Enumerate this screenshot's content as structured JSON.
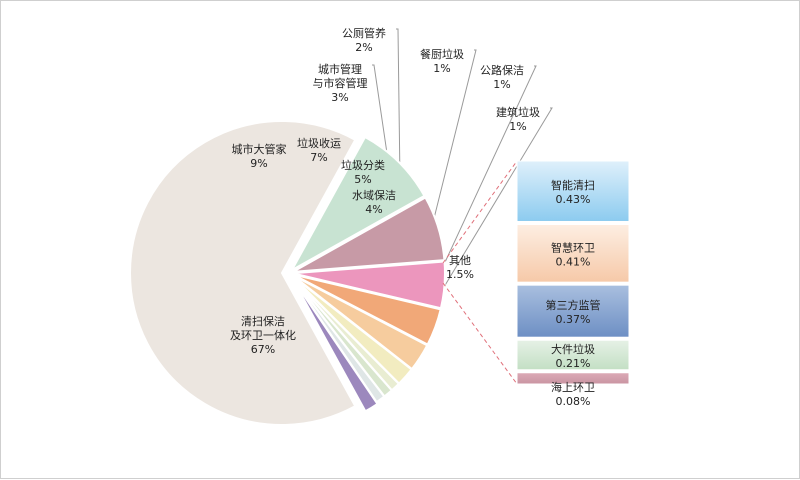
{
  "chart_data": {
    "type": "pie",
    "title": "",
    "main_series": [
      {
        "name": "清扫保洁 及环卫一体化",
        "lines": [
          "清扫保洁",
          "及环卫一体化"
        ],
        "percent_label": "67%",
        "value": 67,
        "color": "#ece6e0"
      },
      {
        "name": "城市大管家",
        "lines": [
          "城市大管家"
        ],
        "percent_label": "9%",
        "value": 9,
        "color": "#c8e3d2"
      },
      {
        "name": "垃圾收运",
        "lines": [
          "垃圾收运"
        ],
        "percent_label": "7%",
        "value": 7,
        "color": "#c79aa6"
      },
      {
        "name": "垃圾分类",
        "lines": [
          "垃圾分类"
        ],
        "percent_label": "5%",
        "value": 5,
        "color": "#ec96bd"
      },
      {
        "name": "水域保洁",
        "lines": [
          "水域保洁"
        ],
        "percent_label": "4%",
        "value": 4,
        "color": "#f1a878"
      },
      {
        "name": "城市管理与市容管理",
        "lines": [
          "城市管理",
          "与市容管理"
        ],
        "percent_label": "3%",
        "value": 3,
        "color": "#f6cc9e"
      },
      {
        "name": "公厕管养",
        "lines": [
          "公厕管养"
        ],
        "percent_label": "2%",
        "value": 2,
        "color": "#f2ecc0"
      },
      {
        "name": "餐厨垃圾",
        "lines": [
          "餐厨垃圾"
        ],
        "percent_label": "1%",
        "value": 1,
        "color": "#e9edd2"
      },
      {
        "name": "公路保洁",
        "lines": [
          "公路保洁"
        ],
        "percent_label": "1%",
        "value": 1,
        "color": "#d9e6ce"
      },
      {
        "name": "建筑垃圾",
        "lines": [
          "建筑垃圾"
        ],
        "percent_label": "1%",
        "value": 1,
        "color": "#dfe6e6"
      },
      {
        "name": "其他",
        "lines": [
          "其他"
        ],
        "percent_label": "1.5%",
        "value": 1.5,
        "color": "#9c88bd"
      }
    ],
    "breakdown_of": "其他",
    "breakdown_series": [
      {
        "name": "智能清扫",
        "percent_label": "0.43%",
        "value": 0.43,
        "color_top": "#dff0fb",
        "color_bottom": "#8ccbef"
      },
      {
        "name": "智慧环卫",
        "percent_label": "0.41%",
        "value": 0.41,
        "color_top": "#fdeee2",
        "color_bottom": "#f6c9a8"
      },
      {
        "name": "第三方监管",
        "percent_label": "0.37%",
        "value": 0.37,
        "color_top": "#a9bfdf",
        "color_bottom": "#6d8fc4"
      },
      {
        "name": "大件垃圾",
        "percent_label": "0.21%",
        "value": 0.21,
        "color_top": "#e6f1e6",
        "color_bottom": "#c3dfc4"
      },
      {
        "name": "海上环卫",
        "percent_label": "0.08%",
        "value": 0.08,
        "color_top": "#dcaab6",
        "color_bottom": "#c994a2"
      }
    ]
  }
}
